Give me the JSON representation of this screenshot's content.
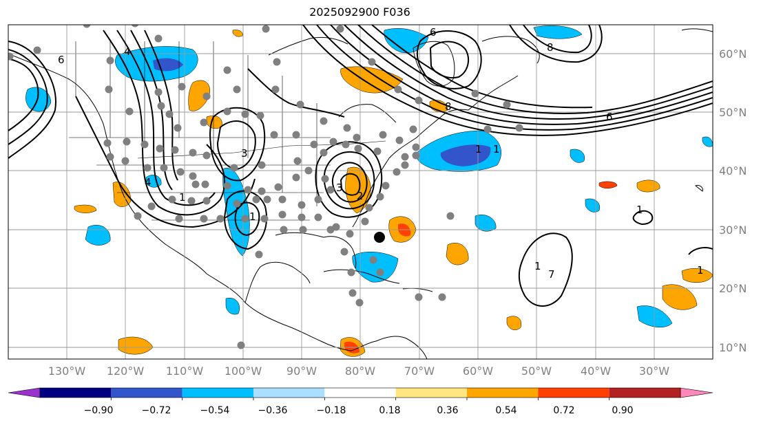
{
  "title": "2025092900 F036",
  "map": {
    "lat_labels": [
      "60°N",
      "50°N",
      "40°N",
      "30°N",
      "20°N",
      "10°N"
    ],
    "lon_labels": [
      "130°W",
      "120°W",
      "110°W",
      "100°W",
      "90°W",
      "80°W",
      "70°W",
      "60°W",
      "50°W",
      "40°W",
      "30°W"
    ],
    "contour_labels": [
      "6",
      "6",
      "6",
      "4",
      "4",
      "1",
      "1",
      "1",
      "3",
      "3",
      "2",
      "8",
      "8",
      "1",
      "1",
      "1",
      "7",
      "1"
    ],
    "contour_color": "#000000",
    "station_marker_color": "#808080",
    "center_marker_color": "#000000"
  },
  "colorbar": {
    "tick_labels": [
      "−0.90",
      "−0.72",
      "−0.54",
      "−0.36",
      "−0.18",
      "0.18",
      "0.36",
      "0.54",
      "0.72",
      "0.90"
    ],
    "colors": [
      "#9933cc",
      "#000080",
      "#3355cc",
      "#00bfff",
      "#aadfff",
      "#ffffff",
      "#ffe680",
      "#ffa500",
      "#ff4000",
      "#b22222",
      "#ff88bb"
    ]
  }
}
